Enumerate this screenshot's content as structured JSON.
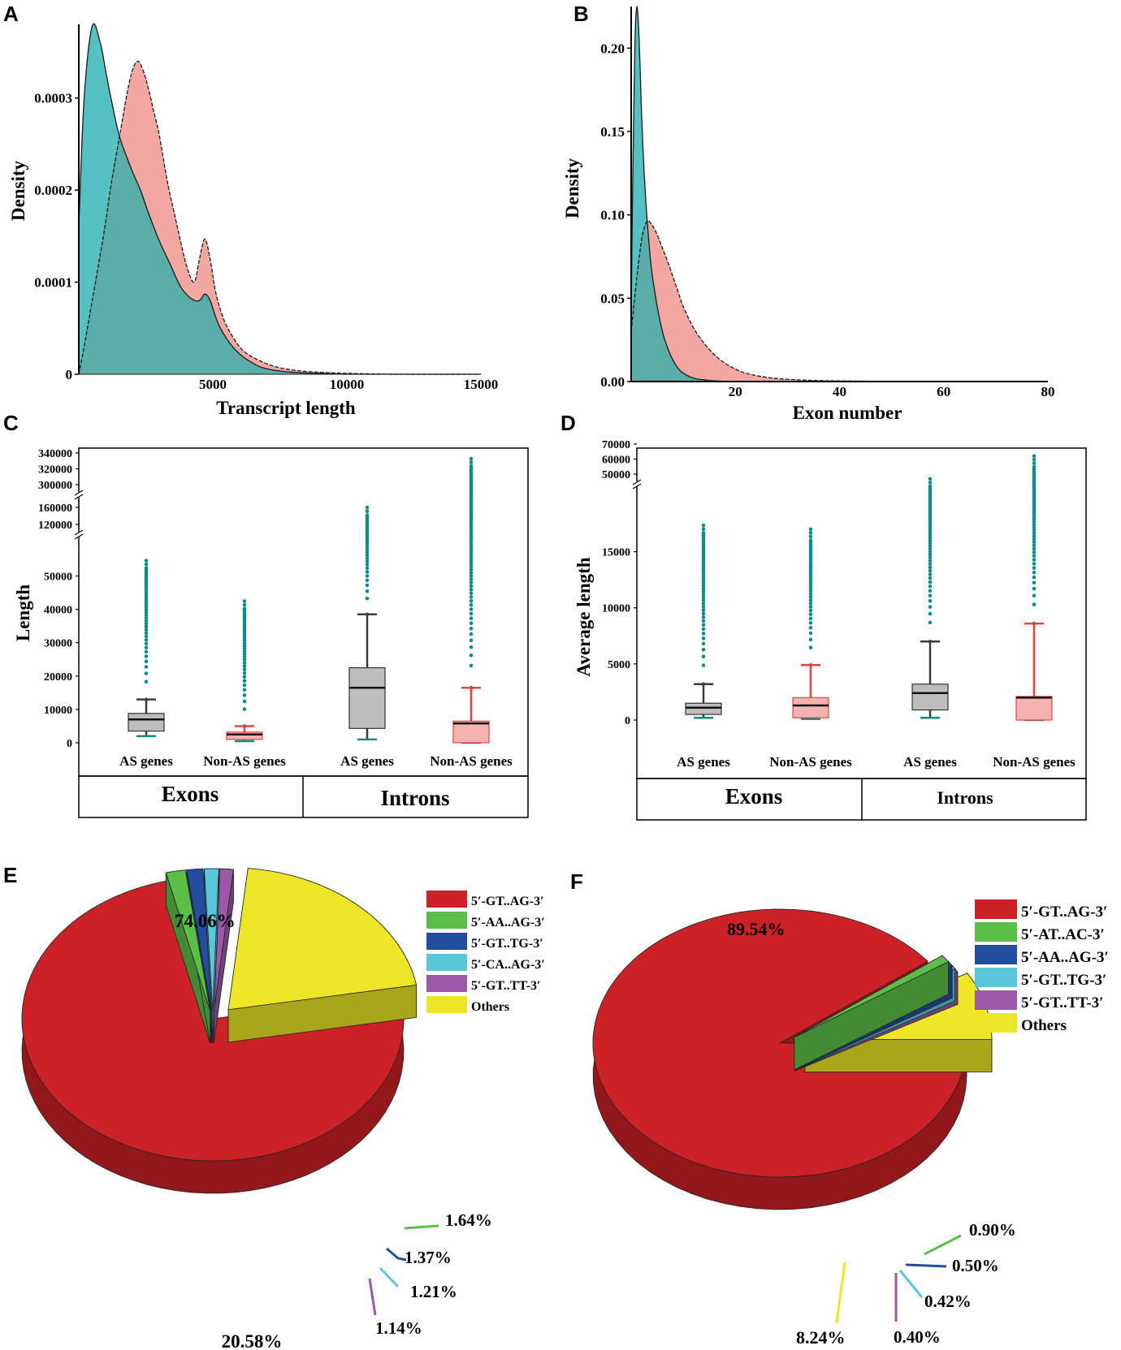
{
  "colors": {
    "teal": "#56c1c3",
    "pink": "#f3a7a3",
    "overlap": "#5aada8",
    "box_gray": "#bdbdbd",
    "box_pink": "#f4b2b0",
    "whisker_dark": "#3a3a3a",
    "whisker_red": "#e8423f",
    "outlier": "#0f8c86",
    "red": "#cc2127",
    "green": "#5bbf47",
    "blue": "#234ea0",
    "cyan": "#5ac7d9",
    "purple": "#9b59a7",
    "yellow": "#ece626"
  },
  "panels": {
    "A": {
      "label": "A",
      "chart_data": {
        "type": "area",
        "xlabel": "Transcript length",
        "ylabel": "Density",
        "xlim": [
          0,
          15000
        ],
        "ylim": [
          0,
          0.00038
        ],
        "xticks": [
          "5000",
          "10000",
          "15000"
        ],
        "yticks": [
          "0",
          "0.0001",
          "0.0002",
          "0.0003"
        ],
        "series": [
          {
            "name": "teal",
            "x": [
              0,
              200,
              500,
              800,
              1000,
              1200,
              1500,
              1800,
              2000,
              2300,
              2600,
              3000,
              3400,
              3800,
              4200,
              4500,
              4700,
              4900,
              5200,
              5600,
              6000,
              6500,
              7000,
              8000,
              9000,
              10000,
              12000,
              15000
            ],
            "y": [
              0.00016,
              0.0003,
              0.000378,
              0.00036,
              0.00033,
              0.0003,
              0.00026,
              0.000235,
              0.00022,
              0.0002,
              0.000175,
              0.000145,
              0.00012,
              9.5e-05,
              8.2e-05,
              8e-05,
              8.7e-05,
              8e-05,
              5.5e-05,
              3.5e-05,
              2.2e-05,
              1.2e-05,
              6e-06,
              2e-06,
              1e-06,
              0,
              0,
              0
            ]
          },
          {
            "name": "pink",
            "x": [
              0,
              200,
              500,
              800,
              1000,
              1200,
              1500,
              1800,
              2000,
              2200,
              2400,
              2600,
              2800,
              3000,
              3300,
              3600,
              4000,
              4300,
              4500,
              4700,
              4900,
              5100,
              5400,
              5800,
              6200,
              6800,
              7500,
              8500,
              10000,
              12000,
              15000
            ],
            "y": [
              0,
              3e-05,
              8e-05,
              0.00013,
              0.000165,
              0.000205,
              0.000255,
              0.000305,
              0.00033,
              0.00034,
              0.00033,
              0.00031,
              0.000285,
              0.00026,
              0.00021,
              0.00017,
              0.00012,
              0.0001,
              0.000125,
              0.000147,
              0.000125,
              9e-05,
              6e-05,
              3.8e-05,
              2.4e-05,
              1.4e-05,
              7e-06,
              3e-06,
              1e-06,
              0,
              0
            ]
          }
        ]
      }
    },
    "B": {
      "label": "B",
      "chart_data": {
        "type": "area",
        "xlabel": "Exon number",
        "ylabel": "Density",
        "xlim": [
          0,
          80
        ],
        "ylim": [
          0,
          0.225
        ],
        "xticks": [
          "20",
          "40",
          "60",
          "80"
        ],
        "yticks": [
          "0.00",
          "0.05",
          "0.10",
          "0.15",
          "0.20"
        ],
        "series": [
          {
            "name": "teal",
            "x": [
              0,
              0.3,
              0.7,
              1,
              1.3,
              1.7,
              2,
              2.5,
              3,
              3.5,
              4,
              5,
              6,
              7,
              8,
              9,
              10,
              12,
              14,
              16,
              20,
              25,
              30,
              80
            ],
            "y": [
              0.04,
              0.12,
              0.2,
              0.223,
              0.22,
              0.19,
              0.16,
              0.125,
              0.1,
              0.08,
              0.065,
              0.045,
              0.03,
              0.02,
              0.013,
              0.008,
              0.005,
              0.002,
              0.001,
              0.0004,
              0,
              0,
              0,
              0
            ]
          },
          {
            "name": "pink",
            "x": [
              0,
              1,
              2,
              3,
              4,
              5,
              6,
              7,
              8,
              9,
              10,
              12,
              14,
              16,
              18,
              20,
              22,
              25,
              28,
              32,
              36,
              40,
              50,
              60,
              80
            ],
            "y": [
              0.03,
              0.06,
              0.085,
              0.096,
              0.094,
              0.088,
              0.08,
              0.072,
              0.063,
              0.054,
              0.045,
              0.032,
              0.023,
              0.016,
              0.011,
              0.0075,
              0.005,
              0.003,
              0.0018,
              0.001,
              0.0006,
              0.0004,
              0.0001,
              0,
              0
            ]
          }
        ]
      }
    },
    "C": {
      "label": "C",
      "chart_data": {
        "type": "box",
        "ylabel": "Length",
        "yticks": [
          "0",
          "10000",
          "20000",
          "30000",
          "40000",
          "50000",
          "120000",
          "160000",
          "300000",
          "320000",
          "340000"
        ],
        "boxes": [
          {
            "label": "AS genes",
            "style": "gray",
            "min": 2000,
            "q1": 3500,
            "median": 7000,
            "q3": 8800,
            "max": 13000,
            "out_max": 56000
          },
          {
            "label": "Non-AS genes",
            "style": "pink",
            "min": 500,
            "q1": 1000,
            "median": 2500,
            "q3": 3200,
            "max": 5000,
            "out_max": 43000
          },
          {
            "label": "AS genes",
            "style": "gray",
            "min": 1000,
            "q1": 4300,
            "median": 16500,
            "q3": 22500,
            "max": 38500,
            "out_max": 170000
          },
          {
            "label": "Non-AS genes",
            "style": "pink",
            "min": 0,
            "q1": 0,
            "median": 5800,
            "q3": 6500,
            "max": 16500,
            "out_max": 335000
          }
        ],
        "groups": [
          "Exons",
          "Introns"
        ]
      }
    },
    "D": {
      "label": "D",
      "chart_data": {
        "type": "box",
        "ylabel": "Average length",
        "yticks": [
          "0",
          "5000",
          "10000",
          "15000",
          "50000",
          "60000",
          "70000"
        ],
        "boxes": [
          {
            "label": "AS genes",
            "style": "gray",
            "min": 200,
            "q1": 500,
            "median": 1100,
            "q3": 1500,
            "max": 3200,
            "out_max": 17500
          },
          {
            "label": "Non-AS genes",
            "style": "pink",
            "min": 100,
            "q1": 200,
            "median": 1300,
            "q3": 2000,
            "max": 4900,
            "out_max": 17000
          },
          {
            "label": "AS genes",
            "style": "gray",
            "min": 200,
            "q1": 900,
            "median": 2400,
            "q3": 3200,
            "max": 7000,
            "out_max": 48000
          },
          {
            "label": "Non-AS genes",
            "style": "pink",
            "min": 0,
            "q1": 0,
            "median": 2000,
            "q3": 2100,
            "max": 8600,
            "out_max": 62000
          }
        ],
        "groups": [
          "Exons",
          "Introns"
        ]
      }
    },
    "E": {
      "label": "E",
      "chart_data": {
        "type": "pie",
        "slices": [
          {
            "label": "5′-GT..AG-3′",
            "value": 74.06,
            "pct": "74.06%",
            "color": "#cc2127"
          },
          {
            "label": "5′-AA..AG-3′",
            "value": 1.64,
            "pct": "1.64%",
            "color": "#5bbf47"
          },
          {
            "label": "5′-GT..TG-3′",
            "value": 1.37,
            "pct": "1.37%",
            "color": "#234ea0"
          },
          {
            "label": "5′-CA..AG-3′",
            "value": 1.21,
            "pct": "1.21%",
            "color": "#5ac7d9"
          },
          {
            "label": "5′-GT..TT-3′",
            "value": 1.14,
            "pct": "1.14%",
            "color": "#9b59a7"
          },
          {
            "label": "Others",
            "value": 20.58,
            "pct": "20.58%",
            "color": "#ece626"
          }
        ]
      }
    },
    "F": {
      "label": "F",
      "chart_data": {
        "type": "pie",
        "slices": [
          {
            "label": "5′-GT..AG-3′",
            "value": 89.54,
            "pct": "89.54%",
            "color": "#cc2127"
          },
          {
            "label": "5′-AT..AC-3′",
            "value": 0.9,
            "pct": "0.90%",
            "color": "#5bbf47"
          },
          {
            "label": "5′-AA..AG-3′",
            "value": 0.5,
            "pct": "0.50%",
            "color": "#234ea0"
          },
          {
            "label": "5′-GT..TG-3′",
            "value": 0.42,
            "pct": "0.42%",
            "color": "#5ac7d9"
          },
          {
            "label": "5′-GT..TT-3′",
            "value": 0.4,
            "pct": "0.40%",
            "color": "#9b59a7"
          },
          {
            "label": "Others",
            "value": 8.24,
            "pct": "8.24%",
            "color": "#ece626"
          }
        ]
      }
    }
  }
}
